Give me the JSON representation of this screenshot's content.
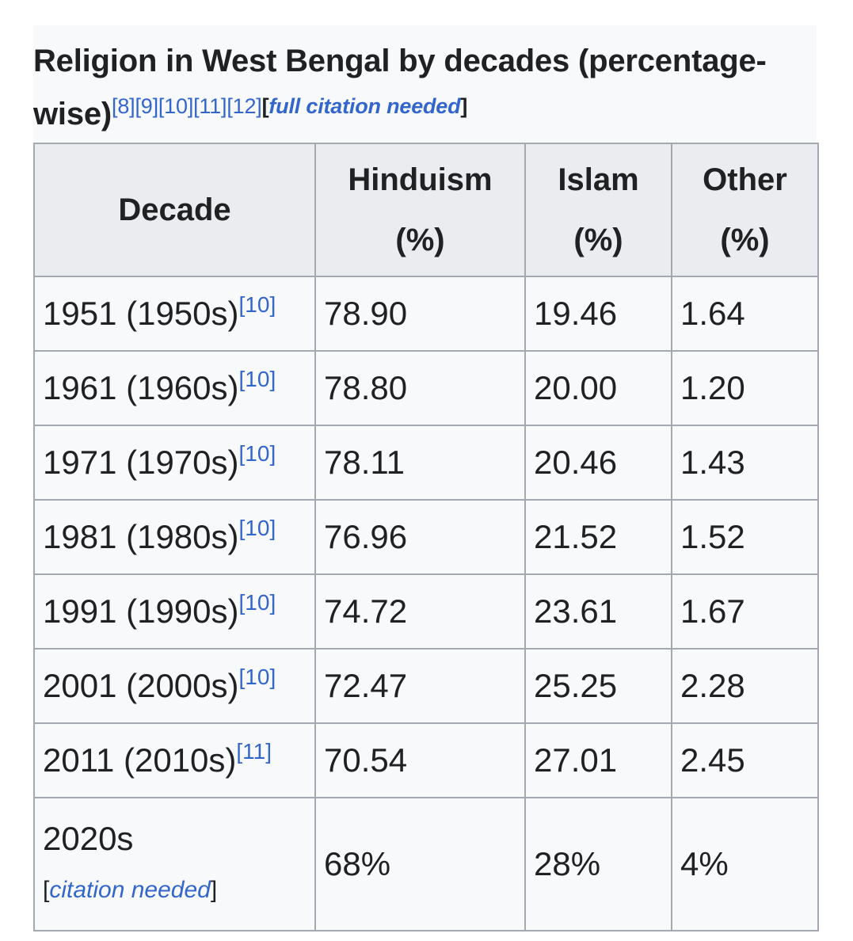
{
  "caption": {
    "title": "Religion in West Bengal by decades (percentage-wise)",
    "refs": "[8][9][10][11][12]",
    "citation_open": "[",
    "citation_text": "full citation needed",
    "citation_close": "]"
  },
  "table": {
    "headers": {
      "decade": "Decade",
      "hinduism": "Hinduism",
      "hinduism_unit": "(%)",
      "islam": "Islam",
      "islam_unit": "(%)",
      "other": "Other",
      "other_unit": "(%)"
    },
    "rows": [
      {
        "decade": "1951 (1950s)",
        "ref": "[10]",
        "hinduism": "78.90",
        "islam": "19.46",
        "other": "1.64"
      },
      {
        "decade": "1961 (1960s)",
        "ref": "[10]",
        "hinduism": "78.80",
        "islam": "20.00",
        "other": "1.20"
      },
      {
        "decade": "1971 (1970s)",
        "ref": "[10]",
        "hinduism": "78.11",
        "islam": "20.46",
        "other": "1.43"
      },
      {
        "decade": "1981 (1980s)",
        "ref": "[10]",
        "hinduism": "76.96",
        "islam": "21.52",
        "other": "1.52"
      },
      {
        "decade": "1991 (1990s)",
        "ref": "[10]",
        "hinduism": "74.72",
        "islam": "23.61",
        "other": "1.67"
      },
      {
        "decade": "2001 (2000s)",
        "ref": "[10]",
        "hinduism": "72.47",
        "islam": "25.25",
        "other": "2.28"
      },
      {
        "decade": "2011 (2010s)",
        "ref": "[11]",
        "hinduism": "70.54",
        "islam": "27.01",
        "other": "2.45"
      }
    ],
    "last_row": {
      "decade": "2020s",
      "citation_open": "[",
      "citation_text": "citation needed",
      "citation_close": "]",
      "hinduism": "68%",
      "islam": "28%",
      "other": "4%"
    }
  }
}
